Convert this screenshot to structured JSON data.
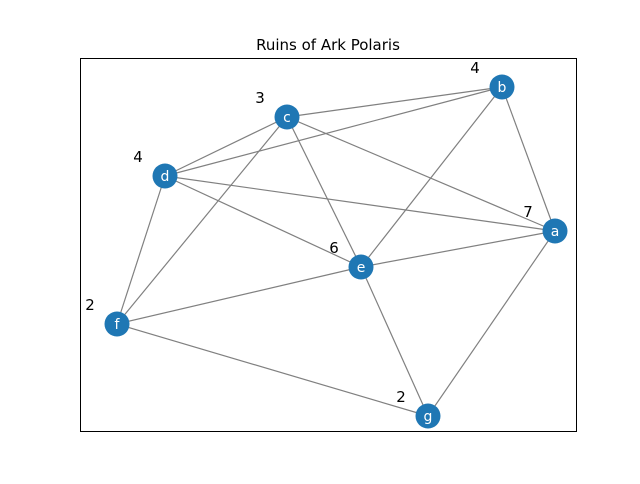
{
  "title": "Ruins of Ark Polaris",
  "colors": {
    "node": "#1f77b4",
    "edge": "#808080",
    "node_text": "#ffffff"
  },
  "nodes": [
    {
      "id": "a",
      "label": "a",
      "weight": "7"
    },
    {
      "id": "b",
      "label": "b",
      "weight": "4"
    },
    {
      "id": "c",
      "label": "c",
      "weight": "3"
    },
    {
      "id": "d",
      "label": "d",
      "weight": "4"
    },
    {
      "id": "e",
      "label": "e",
      "weight": "6"
    },
    {
      "id": "f",
      "label": "f",
      "weight": "2"
    },
    {
      "id": "g",
      "label": "g",
      "weight": "2"
    }
  ],
  "edges": [
    [
      "d",
      "c"
    ],
    [
      "d",
      "b"
    ],
    [
      "c",
      "b"
    ],
    [
      "d",
      "a"
    ],
    [
      "c",
      "a"
    ],
    [
      "b",
      "a"
    ],
    [
      "d",
      "e"
    ],
    [
      "c",
      "e"
    ],
    [
      "b",
      "e"
    ],
    [
      "e",
      "a"
    ],
    [
      "d",
      "f"
    ],
    [
      "c",
      "f"
    ],
    [
      "f",
      "e"
    ],
    [
      "e",
      "g"
    ],
    [
      "f",
      "g"
    ],
    [
      "a",
      "g"
    ]
  ]
}
